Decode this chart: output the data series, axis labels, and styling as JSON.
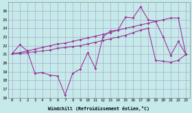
{
  "xlabel": "Windchill (Refroidissement éolien,°C)",
  "bg_color": "#c6eaea",
  "grid_color": "#aaaacc",
  "line_color": "#993399",
  "xlim": [
    -0.5,
    23.5
  ],
  "ylim": [
    16,
    27
  ],
  "xticks": [
    0,
    1,
    2,
    3,
    4,
    5,
    6,
    7,
    8,
    9,
    10,
    11,
    12,
    13,
    14,
    15,
    16,
    17,
    18,
    19,
    20,
    21,
    22,
    23
  ],
  "yticks": [
    16,
    17,
    18,
    19,
    20,
    21,
    22,
    23,
    24,
    25,
    26
  ],
  "series1_x": [
    0,
    1,
    2,
    3,
    4,
    5,
    6,
    7,
    8,
    9,
    10,
    11,
    12,
    13,
    14,
    15,
    16,
    17,
    18,
    19,
    20,
    21,
    22,
    23
  ],
  "series1_y": [
    21.1,
    22.1,
    21.4,
    18.8,
    18.9,
    18.6,
    18.5,
    16.3,
    18.8,
    19.3,
    21.2,
    19.4,
    23.0,
    23.7,
    23.8,
    25.3,
    25.2,
    26.5,
    25.0,
    24.8,
    23.0,
    20.9,
    22.5,
    21.0
  ],
  "series2_x": [
    0,
    1,
    2,
    3,
    4,
    5,
    6,
    7,
    8,
    9,
    10,
    11,
    12,
    13,
    14,
    15,
    16,
    17,
    18,
    19,
    20,
    21,
    22,
    23
  ],
  "series2_y": [
    21.1,
    21.2,
    21.4,
    21.6,
    21.8,
    22.0,
    22.2,
    22.3,
    22.5,
    22.7,
    22.9,
    23.1,
    23.3,
    23.5,
    23.8,
    24.0,
    24.2,
    24.4,
    24.6,
    24.8,
    25.0,
    25.2,
    25.2,
    21.0
  ],
  "series3_x": [
    0,
    1,
    2,
    3,
    4,
    5,
    6,
    7,
    8,
    9,
    10,
    11,
    12,
    13,
    14,
    15,
    16,
    17,
    18,
    19,
    20,
    21,
    22,
    23
  ],
  "series3_y": [
    21.1,
    21.1,
    21.2,
    21.3,
    21.4,
    21.5,
    21.7,
    21.8,
    21.9,
    22.0,
    22.2,
    22.4,
    22.6,
    22.8,
    23.0,
    23.2,
    23.5,
    23.8,
    24.0,
    20.3,
    20.2,
    20.1,
    20.3,
    21.0
  ]
}
